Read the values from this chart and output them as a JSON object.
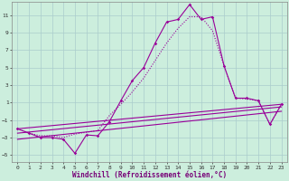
{
  "bg_color": "#cceedd",
  "grid_color": "#aacccc",
  "line_color": "#990099",
  "xlabel": "Windchill (Refroidissement éolien,°C)",
  "x_ticks": [
    0,
    1,
    2,
    3,
    4,
    5,
    6,
    7,
    8,
    9,
    10,
    11,
    12,
    13,
    14,
    15,
    16,
    17,
    18,
    19,
    20,
    21,
    22,
    23
  ],
  "y_ticks": [
    -5,
    -3,
    -1,
    1,
    3,
    5,
    7,
    9,
    11
  ],
  "xlim": [
    -0.5,
    23.5
  ],
  "ylim": [
    -5.8,
    12.5
  ],
  "main_x": [
    0,
    1,
    2,
    3,
    4,
    5,
    6,
    7,
    8,
    9,
    10,
    11,
    12,
    13,
    14,
    15,
    16,
    17,
    18,
    19,
    20,
    21,
    22,
    23
  ],
  "main_y": [
    -2.0,
    -2.5,
    -3.0,
    -3.0,
    -3.2,
    -4.8,
    -2.7,
    -2.8,
    -1.2,
    1.2,
    3.5,
    5.0,
    7.8,
    10.2,
    10.5,
    12.2,
    10.5,
    10.8,
    5.2,
    1.5,
    1.5,
    1.2,
    -1.5,
    0.8
  ],
  "dot_x": [
    0,
    1,
    2,
    3,
    4,
    5,
    6,
    7,
    8,
    9,
    10,
    11,
    12,
    13,
    14,
    15,
    16,
    17,
    18,
    19,
    20,
    21,
    22,
    23
  ],
  "dot_y": [
    -2.0,
    -2.5,
    -2.8,
    -2.8,
    -3.0,
    -2.6,
    -2.4,
    -2.2,
    -0.5,
    0.8,
    2.2,
    3.8,
    5.8,
    7.8,
    9.5,
    10.8,
    10.8,
    9.2,
    5.2,
    1.5,
    1.4,
    1.2,
    -1.5,
    0.8
  ],
  "tline1_y0": -2.0,
  "tline1_y1": 0.8,
  "tline2_y0": -2.5,
  "tline2_y1": 0.5,
  "tline3_y0": -3.2,
  "tline3_y1": 0.0
}
